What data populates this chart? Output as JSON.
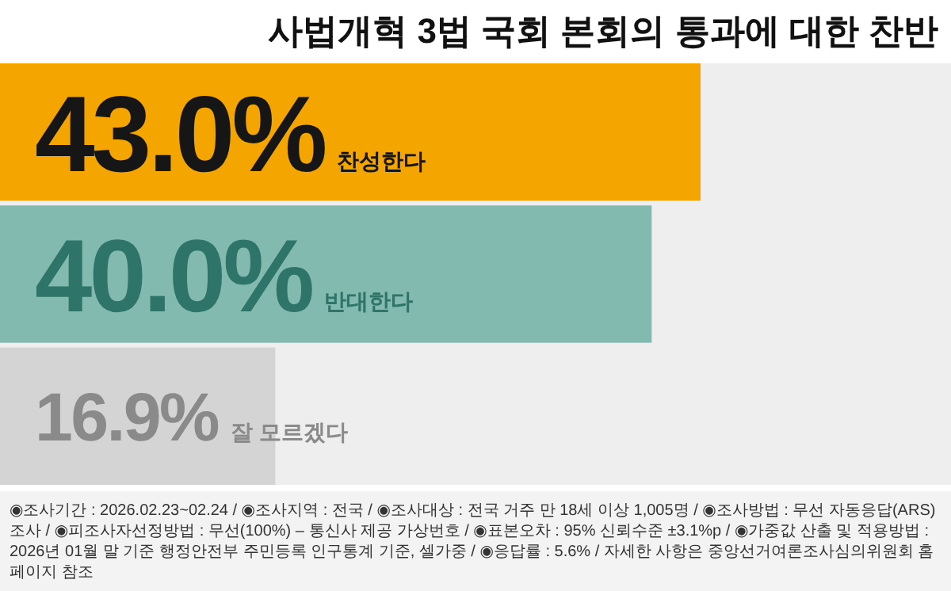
{
  "chart_data": {
    "type": "bar",
    "orientation": "horizontal",
    "title": "사법개혁 3법 국회 본회의 통과에 대한 찬반",
    "categories": [
      "찬성한다",
      "반대한다",
      "잘 모르겠다"
    ],
    "values": [
      43.0,
      40.0,
      16.9
    ],
    "colors": [
      "#f5a500",
      "#82bab0",
      "#d4d4d4"
    ],
    "value_labels": [
      "43.0%",
      "40.0%",
      "16.9%"
    ],
    "annotations": [
      "◉조사기간 : 2026.02.23~02.24 / ◉조사지역 : 전국 / ◉조사대상 : 전국 거주 만 18세 이상 1,005명 / ◉조사방법 : 무선 자동응답(ARS) 조사 / ◉피조사자선정방법 : 무선(100%) – 통신사 제공 가상번호 / ◉표본오차 : 95% 신뢰수준 ±3.1%p / ◉가중값 산출 및 적용방법 : 2026년 01월 말 기준 행정안전부 주민등록 인구통계 기준, 셀가중 / ◉응답률 : 5.6% / 자세한 사항은 중앙선거여론조사심의위원회 홈페이지 참조"
    ]
  }
}
